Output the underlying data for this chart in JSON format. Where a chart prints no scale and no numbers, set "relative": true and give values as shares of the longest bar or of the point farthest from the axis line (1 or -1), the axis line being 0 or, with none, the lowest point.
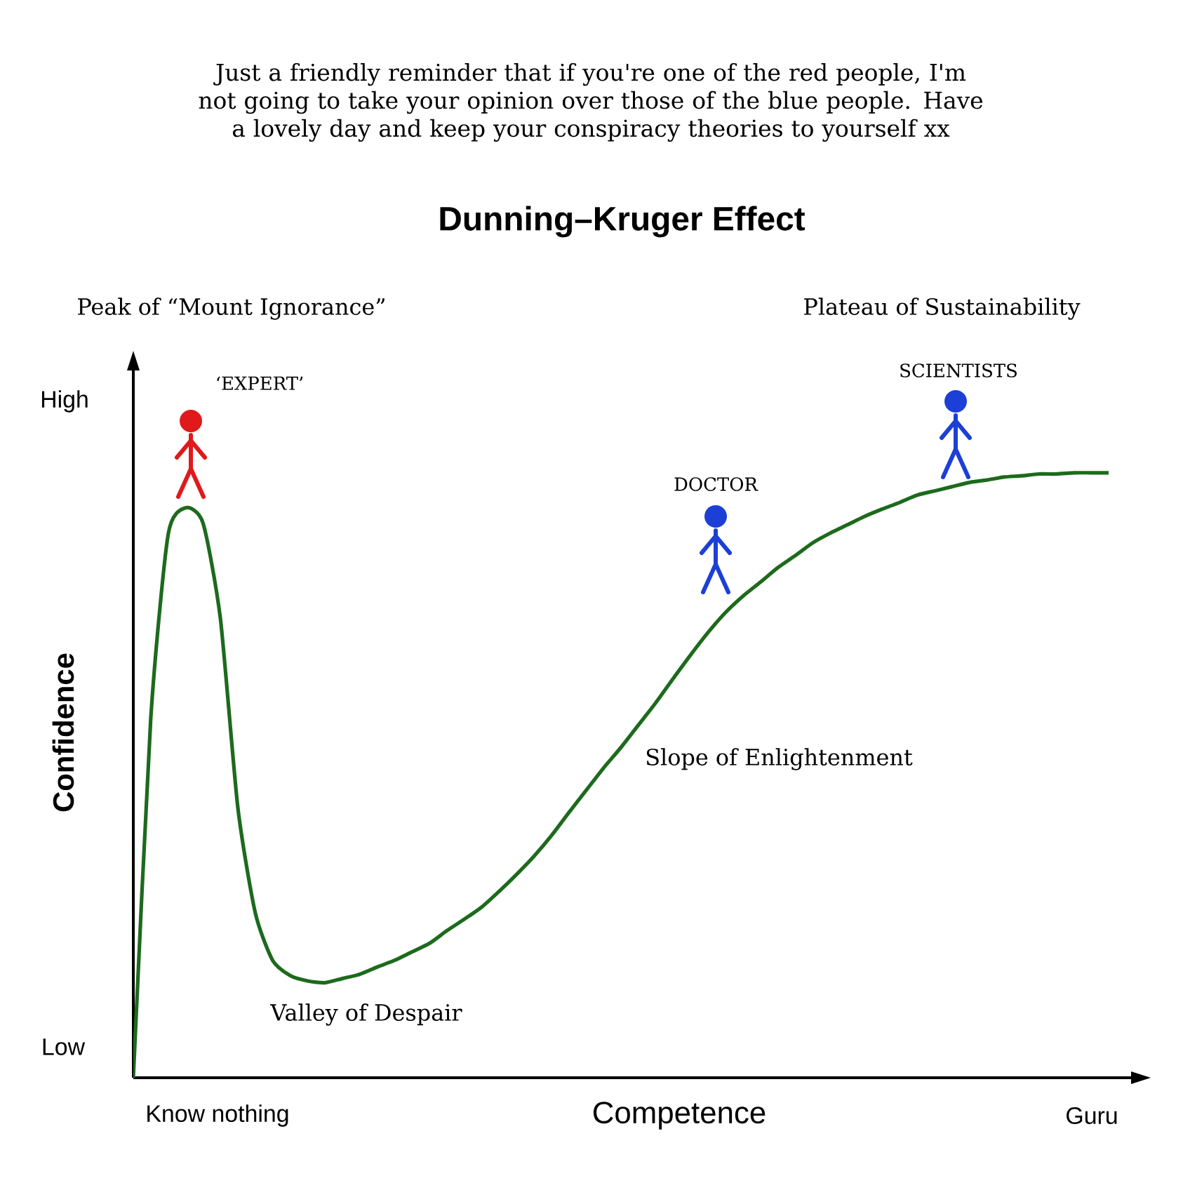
{
  "chart_data": {
    "type": "line",
    "title": "Dunning–Kruger Effect",
    "xlabel": "Competence",
    "ylabel": "Confidence",
    "relative": true,
    "color": "#1d6a1d",
    "line_style": "solid",
    "categories": [
      null,
      null,
      null,
      null,
      null,
      null,
      null,
      null,
      null,
      null,
      null,
      null,
      null,
      null,
      null,
      null,
      null,
      null,
      null,
      null,
      null,
      null,
      null,
      null,
      null,
      null,
      null,
      null,
      null,
      null,
      null,
      null,
      null,
      null,
      null,
      null,
      null,
      null,
      null,
      null,
      null,
      null,
      null,
      null,
      null,
      null,
      null,
      null,
      null,
      null,
      null,
      null,
      null,
      null,
      null,
      null,
      null
    ],
    "values": [
      0,
      0.593,
      0.898,
      0.942,
      0.917,
      0.759,
      0.447,
      0.273,
      0.194,
      0.169,
      0.16,
      0.157,
      0.164,
      0.171,
      0.183,
      0.194,
      0.208,
      0.222,
      0.243,
      0.262,
      0.282,
      0.308,
      0.336,
      0.366,
      0.4,
      0.438,
      0.475,
      0.512,
      0.546,
      0.583,
      0.62,
      0.66,
      0.699,
      0.736,
      0.769,
      0.796,
      0.819,
      0.843,
      0.863,
      0.884,
      0.9,
      0.914,
      0.928,
      0.94,
      0.951,
      0.963,
      0.97,
      0.977,
      0.984,
      0.988,
      0.993,
      0.995,
      0.998,
      0.998,
      1,
      1,
      1
    ],
    "annotations": [
      "Just a friendly reminder that if you're one of the red people, I'm not going to take your opinion over those of the blue people. Have a lovely day and keep your conspiracy theories to yourself xx",
      "Peak of “Mount Ignorance”",
      "Plateau of Sustainability",
      "‘EXPERT’",
      "SCIENTISTS",
      "DOCTOR",
      "Slope of Enlightenment",
      "Valley of Despair",
      "High",
      "Low",
      "Know nothing",
      "Guru"
    ]
  }
}
